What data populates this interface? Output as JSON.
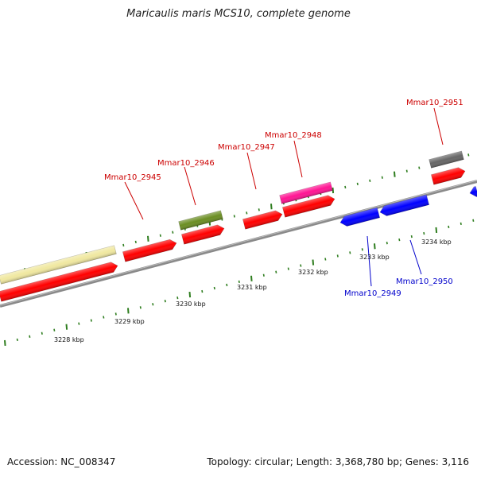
{
  "title": "Maricaulis maris MCS10, complete genome",
  "footer": {
    "accession": "Accession: NC_008347",
    "summary": "Topology: circular; Length: 3,368,780 bp; Genes: 3,116"
  },
  "colors": {
    "forward_label": "#cc0000",
    "reverse_label": "#0000cc",
    "tick": "#2e7d1e",
    "backbone": "#8a8a8a"
  },
  "scale_labels": [
    "3228 kbp",
    "3229 kbp",
    "3230 kbp",
    "3231 kbp",
    "3232 kbp",
    "3233 kbp",
    "3234 kbp"
  ],
  "gene_labels": {
    "forward": [
      "Mmar10_2945",
      "Mmar10_2946",
      "Mmar10_2947",
      "Mmar10_2948",
      "Mmar10_2951"
    ],
    "reverse": [
      "Mmar10_2949",
      "Mmar10_2950"
    ]
  },
  "features": [
    {
      "strand": "forward",
      "color": "#f0e8a0",
      "track": "outer"
    },
    {
      "strand": "forward",
      "color": "#ff0000",
      "track": "inner"
    },
    {
      "strand": "forward",
      "color": "#ff0000",
      "track": "inner"
    },
    {
      "strand": "forward",
      "color": "#ff0000",
      "track": "inner"
    },
    {
      "strand": "forward",
      "color": "#6b8e23",
      "track": "outer"
    },
    {
      "strand": "forward",
      "color": "#ff0000",
      "track": "inner"
    },
    {
      "strand": "forward",
      "color": "#ff1493",
      "track": "outer"
    },
    {
      "strand": "forward",
      "color": "#ff0000",
      "track": "inner"
    },
    {
      "strand": "forward",
      "color": "#666666",
      "track": "outer"
    },
    {
      "strand": "forward",
      "color": "#ff0000",
      "track": "inner"
    },
    {
      "strand": "reverse",
      "color": "#0000ff",
      "track": "inner"
    },
    {
      "strand": "reverse",
      "color": "#0000ff",
      "track": "inner"
    },
    {
      "strand": "reverse",
      "color": "#0000ff",
      "track": "inner"
    }
  ]
}
